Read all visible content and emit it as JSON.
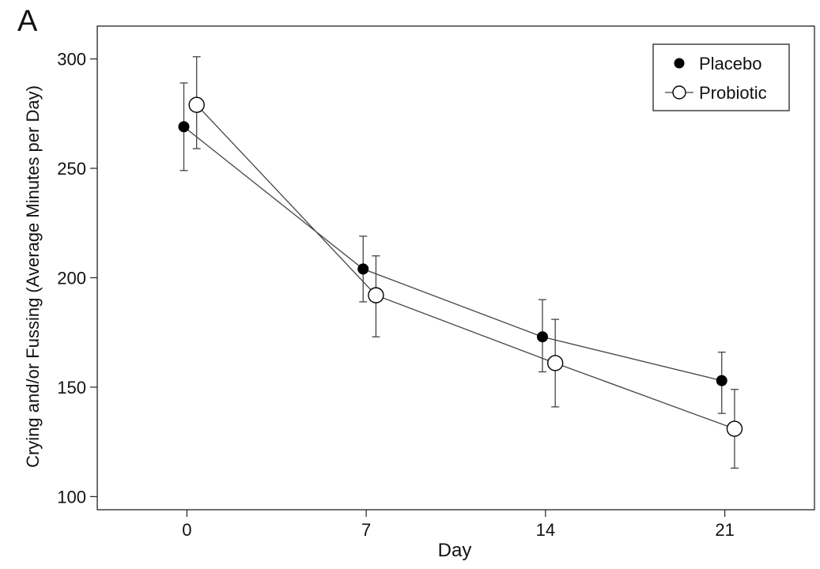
{
  "panel_label": "A",
  "chart_data": {
    "type": "line",
    "xlabel": "Day",
    "ylabel": "Crying and/or Fussing (Average Minutes per Day)",
    "x_ticks": [
      0,
      7,
      14,
      21
    ],
    "y_ticks": [
      100,
      150,
      200,
      250,
      300
    ],
    "xlim": [
      -3.5,
      24.5
    ],
    "ylim": [
      94,
      315
    ],
    "grid": false,
    "legend_position": "top-right",
    "series": [
      {
        "name": "Placebo",
        "marker": "filled-circle",
        "color": "#000000",
        "x": [
          0,
          7,
          14,
          21
        ],
        "y": [
          269,
          204,
          173,
          153
        ],
        "err_low": [
          249,
          189,
          157,
          138
        ],
        "err_high": [
          289,
          219,
          190,
          166
        ]
      },
      {
        "name": "Probiotic",
        "marker": "open-circle",
        "color": "#000000",
        "x": [
          0,
          7,
          14,
          21
        ],
        "y": [
          279,
          192,
          161,
          131
        ],
        "err_low": [
          259,
          173,
          141,
          113
        ],
        "err_high": [
          301,
          210,
          181,
          149
        ]
      }
    ]
  }
}
